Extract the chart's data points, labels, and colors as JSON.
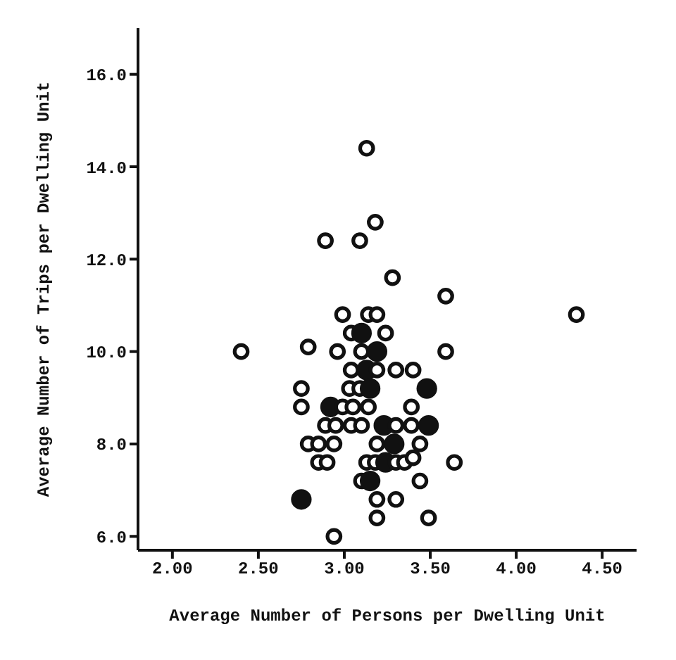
{
  "chart_data": {
    "type": "bubble",
    "xlabel": "Average Number of Persons per Dwelling Unit",
    "ylabel": "Average Number of Trips per Dwelling Unit",
    "xlim": [
      1.8,
      4.7
    ],
    "xticks": [
      {
        "value": 2,
        "label": "2.00"
      },
      {
        "value": 2.5,
        "label": "2.50"
      },
      {
        "value": 3,
        "label": "3.00"
      },
      {
        "value": 3.5,
        "label": "3.50"
      },
      {
        "value": 4,
        "label": "4.00"
      },
      {
        "value": 4.5,
        "label": "4.50"
      }
    ],
    "ylim": [
      5.7,
      17
    ],
    "yticks": [
      {
        "value": 6,
        "label": "6.0"
      },
      {
        "value": 8,
        "label": "8.0"
      },
      {
        "value": 10,
        "label": "10.0"
      },
      {
        "value": 12,
        "label": "12.0"
      },
      {
        "value": 14,
        "label": "14.0"
      },
      {
        "value": 16,
        "label": "16.0"
      }
    ],
    "grid": false,
    "legend": false,
    "marker": "circle",
    "series": [
      {
        "color": "#111111",
        "x": [
          3.13,
          3.18,
          2.89,
          3.09,
          3.28,
          3.59,
          2.99,
          3.14,
          3.19,
          3.04,
          3.1,
          3.24,
          2.79,
          2.96,
          3.1,
          3.19,
          3.59,
          3.04,
          3.13,
          3.19,
          3.3,
          3.4,
          2.75,
          3.03,
          3.09,
          3.15,
          3.48,
          2.75,
          2.92,
          2.99,
          3.05,
          3.14,
          3.39,
          2.89,
          2.95,
          3.04,
          3.1,
          3.23,
          3.3,
          3.39,
          3.49,
          2.79,
          2.85,
          2.94,
          3.19,
          3.29,
          3.44,
          2.85,
          2.9,
          3.13,
          3.18,
          3.24,
          3.3,
          3.35,
          3.4,
          3.64,
          3.1,
          3.15,
          3.44,
          2.75,
          3.19,
          3.3,
          3.19,
          3.49,
          2.94,
          2.4,
          4.35
        ],
        "values": [
          14.4,
          12.8,
          12.4,
          12.4,
          11.6,
          11.2,
          10.8,
          10.8,
          10.8,
          10.4,
          10.4,
          10.4,
          10.1,
          10.0,
          10.0,
          10.0,
          10.0,
          9.6,
          9.6,
          9.6,
          9.6,
          9.6,
          9.2,
          9.2,
          9.2,
          9.2,
          9.2,
          8.8,
          8.8,
          8.8,
          8.8,
          8.8,
          8.8,
          8.4,
          8.4,
          8.4,
          8.4,
          8.4,
          8.4,
          8.4,
          8.4,
          8.0,
          8.0,
          8.0,
          8.0,
          8.0,
          8.0,
          7.6,
          7.6,
          7.6,
          7.6,
          7.6,
          7.6,
          7.6,
          7.7,
          7.6,
          7.2,
          7.2,
          7.2,
          6.8,
          6.8,
          6.8,
          6.4,
          6.4,
          6.0,
          10.0,
          10.8
        ],
        "sizes": [
          0.4,
          0.4,
          0.4,
          0.4,
          0.4,
          0.4,
          0.4,
          0.4,
          0.4,
          0.4,
          1,
          0.4,
          0.4,
          0.4,
          0.4,
          1,
          0.4,
          0.4,
          1,
          0.4,
          0.4,
          0.4,
          0.4,
          0.4,
          0.4,
          1,
          1,
          0.4,
          1,
          0.4,
          0.4,
          0.4,
          0.4,
          0.4,
          0.4,
          0.4,
          0.4,
          1,
          0.4,
          0.4,
          1,
          0.4,
          0.4,
          0.4,
          0.4,
          1,
          0.4,
          0.4,
          0.4,
          0.4,
          0.4,
          1,
          0.4,
          0.4,
          0.4,
          0.4,
          0.4,
          1,
          0.4,
          1,
          0.4,
          0.4,
          0.4,
          0.4,
          0.4,
          0.4,
          0.4
        ]
      }
    ]
  }
}
